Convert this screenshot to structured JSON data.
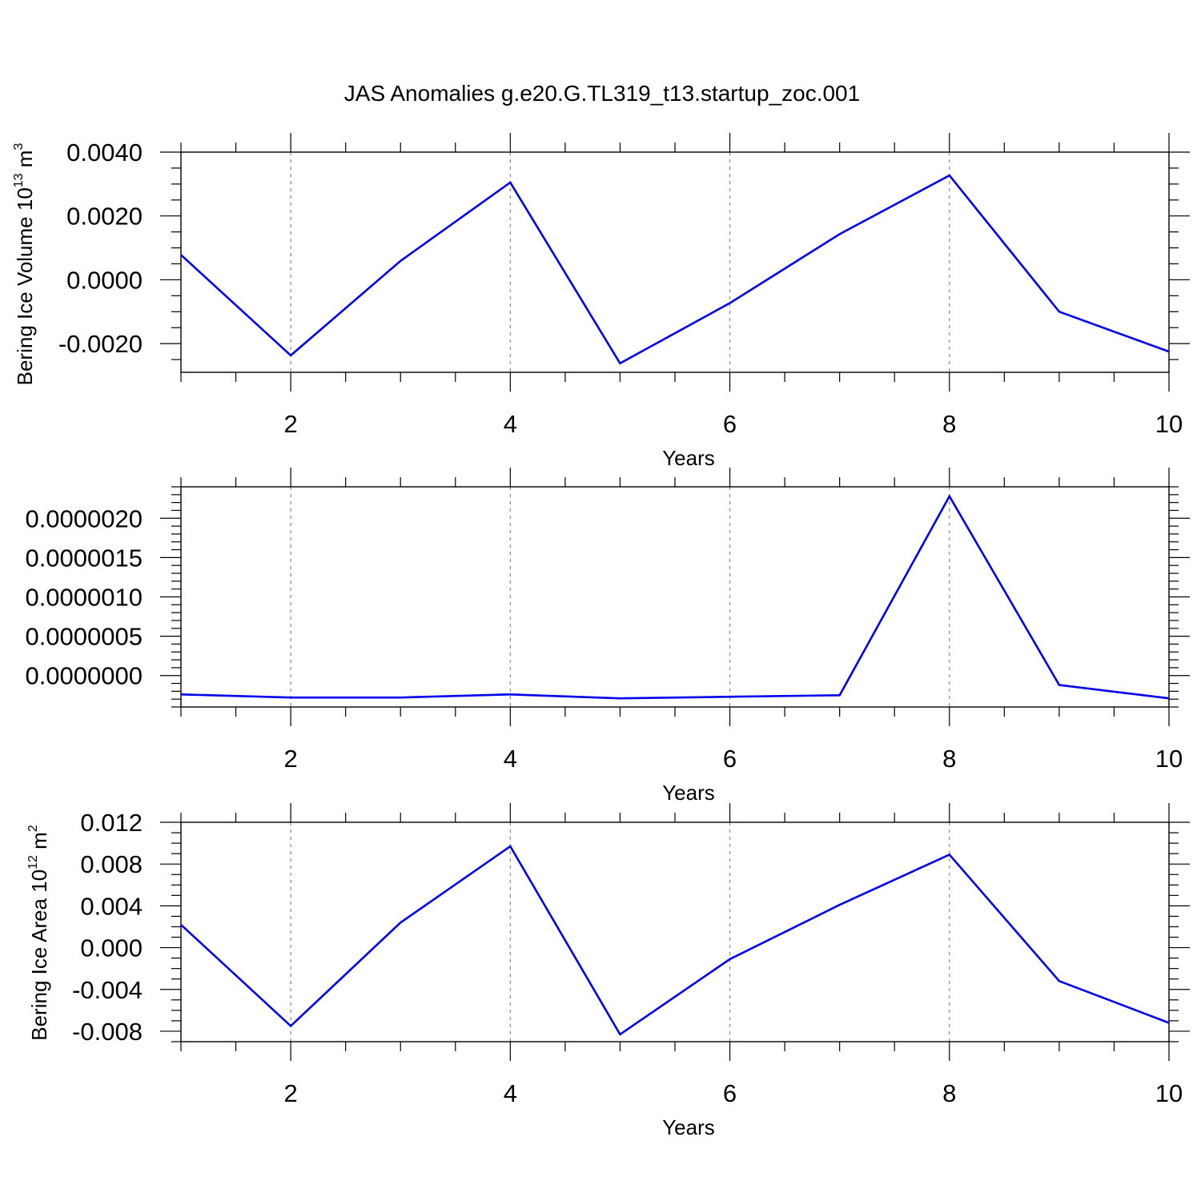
{
  "figure": {
    "title": "JAS Anomalies g.e20.G.TL319_t13.startup_zoc.001"
  },
  "chart_data": [
    {
      "type": "line",
      "title": "",
      "xlabel": "Years",
      "ylabel": {
        "base": "Bering Ice Volume 10",
        "sup": "13",
        "unit": " m",
        "unit_sup": "3"
      },
      "xlim": [
        1,
        10
      ],
      "ylim": [
        -0.0029,
        0.004
      ],
      "xticks": [
        2,
        4,
        6,
        8,
        10
      ],
      "xtick_labels": [
        "2",
        "4",
        "6",
        "8",
        "10"
      ],
      "yticks": [
        -0.002,
        0.0,
        0.002,
        0.004
      ],
      "ytick_labels": [
        "-0.0020",
        "0.0000",
        "0.0020",
        "0.0040"
      ],
      "yminor_step": 0.0005,
      "grid": "vertical-dashed-at-major-x",
      "line_color": "#0000ee",
      "series": [
        {
          "x": [
            1,
            2,
            3,
            4,
            5,
            6,
            7,
            8,
            9,
            10
          ],
          "values": [
            0.00078,
            -0.00237,
            0.00059,
            0.00305,
            -0.00262,
            -0.00073,
            0.00143,
            0.00327,
            -0.001,
            -0.00225
          ]
        }
      ]
    },
    {
      "type": "line",
      "title": "",
      "xlabel": "Years",
      "ylabel": null,
      "xlim": [
        1,
        10
      ],
      "ylim": [
        -4e-07,
        2.4e-06
      ],
      "xticks": [
        2,
        4,
        6,
        8,
        10
      ],
      "xtick_labels": [
        "2",
        "4",
        "6",
        "8",
        "10"
      ],
      "yticks": [
        0.0,
        5e-07,
        1e-06,
        1.5e-06,
        2e-06
      ],
      "ytick_labels": [
        "0.0000000",
        "0.0000005",
        "0.0000010",
        "0.0000015",
        "0.0000020"
      ],
      "yminor_step": 1e-07,
      "grid": "vertical-dashed-at-major-x",
      "line_color": "#0000ee",
      "series": [
        {
          "x": [
            1,
            2,
            3,
            4,
            5,
            6,
            7,
            8,
            9,
            10
          ],
          "values": [
            -2.4e-07,
            -2.8e-07,
            -2.8e-07,
            -2.4e-07,
            -2.9e-07,
            -2.7e-07,
            -2.5e-07,
            2.28e-06,
            -1.2e-07,
            -2.9e-07
          ]
        }
      ]
    },
    {
      "type": "line",
      "title": "",
      "xlabel": "Years",
      "ylabel": {
        "base": "Bering Ice Area 10",
        "sup": "12",
        "unit": " m",
        "unit_sup": "2"
      },
      "xlim": [
        1,
        10
      ],
      "ylim": [
        -0.009,
        0.012
      ],
      "xticks": [
        2,
        4,
        6,
        8,
        10
      ],
      "xtick_labels": [
        "2",
        "4",
        "6",
        "8",
        "10"
      ],
      "yticks": [
        -0.008,
        -0.004,
        0.0,
        0.004,
        0.008,
        0.012
      ],
      "ytick_labels": [
        "-0.008",
        "-0.004",
        "0.000",
        "0.004",
        "0.008",
        "0.012"
      ],
      "yminor_step": 0.001,
      "grid": "vertical-dashed-at-major-x",
      "line_color": "#0000ee",
      "series": [
        {
          "x": [
            1,
            2,
            3,
            4,
            5,
            6,
            7,
            8,
            9,
            10
          ],
          "values": [
            0.0022,
            -0.0075,
            0.0024,
            0.0097,
            -0.0083,
            -0.0011,
            0.0041,
            0.0089,
            -0.0032,
            -0.0072
          ]
        }
      ]
    }
  ]
}
